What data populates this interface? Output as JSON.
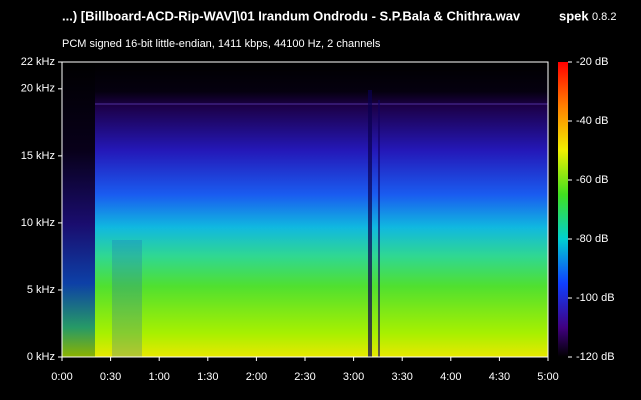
{
  "chart_data": {
    "type": "spectrogram",
    "title": "...) [Billboard-ACD-Rip-WAV]\\01 Irandum Ondrodu - S.P.Bala & Chithra.wav",
    "app_name": "spek",
    "app_version": "0.8.2",
    "subtitle": "PCM signed 16-bit little-endian, 1411 kbps, 44100 Hz, 2 channels",
    "xlim": [
      0,
      300
    ],
    "xticks": [
      {
        "value": 0,
        "label": "0:00"
      },
      {
        "value": 30,
        "label": "0:30"
      },
      {
        "value": 60,
        "label": "1:00"
      },
      {
        "value": 90,
        "label": "1:30"
      },
      {
        "value": 120,
        "label": "2:00"
      },
      {
        "value": 150,
        "label": "2:30"
      },
      {
        "value": 180,
        "label": "3:00"
      },
      {
        "value": 210,
        "label": "3:30"
      },
      {
        "value": 240,
        "label": "4:00"
      },
      {
        "value": 270,
        "label": "4:30"
      },
      {
        "value": 300,
        "label": "5:00"
      }
    ],
    "ylim": [
      0,
      22
    ],
    "yticks": [
      {
        "value": 0,
        "label": "0 kHz"
      },
      {
        "value": 5,
        "label": "5 kHz"
      },
      {
        "value": 10,
        "label": "10 kHz"
      },
      {
        "value": 15,
        "label": "15 kHz"
      },
      {
        "value": 20,
        "label": "20 kHz"
      },
      {
        "value": 22,
        "label": "22 kHz"
      }
    ],
    "clim": [
      -120,
      -20
    ],
    "cticks": [
      {
        "value": -20,
        "label": "-20 dB"
      },
      {
        "value": -40,
        "label": "-40 dB"
      },
      {
        "value": -60,
        "label": "-60 dB"
      },
      {
        "value": -80,
        "label": "-80 dB"
      },
      {
        "value": -100,
        "label": "-100 dB"
      },
      {
        "value": -120,
        "label": "-120 dB"
      }
    ]
  }
}
